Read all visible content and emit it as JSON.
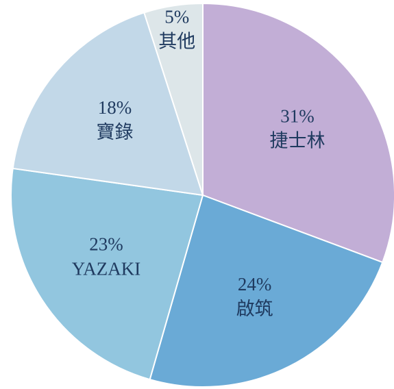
{
  "chart_data": {
    "type": "pie",
    "categories": [
      "捷士林",
      "啟筑",
      "YAZAKI",
      "寶錄",
      "其他"
    ],
    "values": [
      31,
      24,
      23,
      18,
      5
    ],
    "value_labels": [
      "31%",
      "24%",
      "23%",
      "18%",
      "5%"
    ],
    "colors": [
      "#c2aed6",
      "#6aaad6",
      "#92c6df",
      "#c2d8e8",
      "#dde6e9"
    ]
  }
}
